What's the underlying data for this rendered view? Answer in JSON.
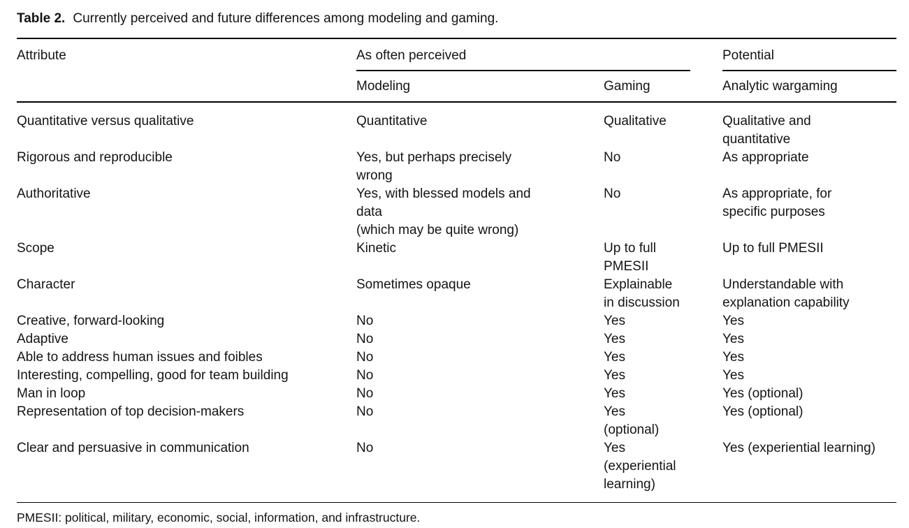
{
  "caption": {
    "label": "Table 2.",
    "text": "Currently perceived and future differences among modeling and gaming."
  },
  "table": {
    "header": {
      "attribute": "Attribute",
      "perceived_group": "As often perceived",
      "potential_group": "Potential",
      "columns": [
        "Modeling",
        "Gaming",
        "Analytic wargaming"
      ]
    },
    "rows": [
      {
        "attribute": "Quantitative versus qualitative",
        "modeling": "Quantitative",
        "gaming": "Qualitative",
        "wargaming": "Qualitative and\nquantitative"
      },
      {
        "attribute": "Rigorous and reproducible",
        "modeling": "Yes, but perhaps precisely\nwrong",
        "gaming": "No",
        "wargaming": "As appropriate"
      },
      {
        "attribute": "Authoritative",
        "modeling": "Yes, with blessed models and\ndata\n(which may be quite wrong)",
        "gaming": "No",
        "wargaming": "As appropriate, for\nspecific purposes"
      },
      {
        "attribute": "Scope",
        "modeling": "Kinetic",
        "gaming": "Up to full\nPMESII",
        "wargaming": "Up to full PMESII"
      },
      {
        "attribute": "Character",
        "modeling": "Sometimes opaque",
        "gaming": "Explainable\nin discussion",
        "wargaming": "Understandable with\nexplanation capability"
      },
      {
        "attribute": "Creative, forward-looking",
        "modeling": "No",
        "gaming": "Yes",
        "wargaming": "Yes"
      },
      {
        "attribute": "Adaptive",
        "modeling": "No",
        "gaming": "Yes",
        "wargaming": "Yes"
      },
      {
        "attribute": "Able to address human issues and foibles",
        "modeling": "No",
        "gaming": "Yes",
        "wargaming": "Yes"
      },
      {
        "attribute": "Interesting, compelling, good for team building",
        "modeling": "No",
        "gaming": "Yes",
        "wargaming": "Yes"
      },
      {
        "attribute": "Man in loop",
        "modeling": "No",
        "gaming": "Yes",
        "wargaming": "Yes (optional)"
      },
      {
        "attribute": "Representation of top decision-makers",
        "modeling": "No",
        "gaming": "Yes\n(optional)",
        "wargaming": "Yes (optional)"
      },
      {
        "attribute": "Clear and persuasive in communication",
        "modeling": "No",
        "gaming": "Yes\n(experiential\nlearning)",
        "wargaming": "Yes (experiential learning)"
      }
    ]
  },
  "footnote": "PMESII: political, military, economic, social, information, and infrastructure."
}
